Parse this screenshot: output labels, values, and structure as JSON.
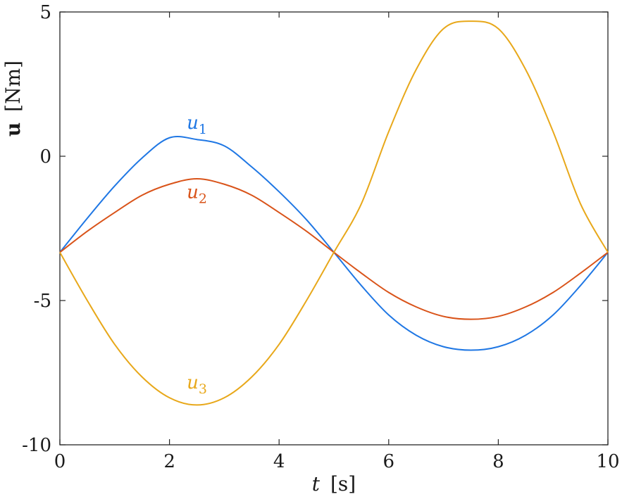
{
  "chart_data": {
    "type": "line",
    "xlabel": {
      "var": "t",
      "unit": "[s]"
    },
    "ylabel": {
      "var": "u",
      "unit": "[Nm]"
    },
    "xlim": [
      0,
      10
    ],
    "ylim": [
      -10,
      5
    ],
    "xticks": [
      0,
      2,
      4,
      6,
      8,
      10
    ],
    "yticks": [
      -10,
      -5,
      0,
      5
    ],
    "xtick_labels": [
      "0",
      "2",
      "4",
      "6",
      "8",
      "10"
    ],
    "ytick_labels": [
      "-10",
      "-5",
      "0",
      "5"
    ],
    "grid": false,
    "series": [
      {
        "name": "u",
        "sub": "1",
        "color": "#1f77e4",
        "x": [
          0,
          0.5,
          1,
          1.5,
          2,
          2.5,
          3,
          3.5,
          4,
          4.5,
          5,
          5.5,
          6,
          6.5,
          7,
          7.5,
          8,
          8.5,
          9,
          9.5,
          10
        ],
        "y": [
          -3.33,
          -2.15,
          -1.03,
          -0.06,
          0.64,
          0.58,
          0.36,
          -0.37,
          -1.23,
          -2.2,
          -3.33,
          -4.48,
          -5.5,
          -6.2,
          -6.6,
          -6.72,
          -6.6,
          -6.2,
          -5.5,
          -4.48,
          -3.33
        ]
      },
      {
        "name": "u",
        "sub": "2",
        "color": "#d95319",
        "x": [
          0,
          0.5,
          1,
          1.5,
          2,
          2.5,
          3,
          3.5,
          4,
          4.5,
          5,
          5.5,
          6,
          6.5,
          7,
          7.5,
          8,
          8.5,
          9,
          9.5,
          10
        ],
        "y": [
          -3.33,
          -2.6,
          -1.95,
          -1.35,
          -0.97,
          -0.78,
          -0.97,
          -1.35,
          -1.95,
          -2.6,
          -3.33,
          -4.05,
          -4.72,
          -5.22,
          -5.55,
          -5.65,
          -5.55,
          -5.22,
          -4.72,
          -4.05,
          -3.33
        ]
      },
      {
        "name": "u",
        "sub": "3",
        "color": "#e8a81a",
        "x": [
          0,
          0.5,
          1,
          1.5,
          2,
          2.5,
          3,
          3.5,
          4,
          4.5,
          5,
          5.5,
          6,
          6.5,
          7,
          7.5,
          8,
          8.5,
          9,
          9.5,
          10
        ],
        "y": [
          -3.33,
          -5.0,
          -6.52,
          -7.65,
          -8.37,
          -8.62,
          -8.37,
          -7.65,
          -6.52,
          -5.0,
          -3.33,
          -1.65,
          0.85,
          3.0,
          4.42,
          4.68,
          4.42,
          3.0,
          0.85,
          -1.65,
          -3.33
        ]
      }
    ],
    "annotations": [
      {
        "series": 0,
        "x": 2.5,
        "y": 0.95
      },
      {
        "series": 1,
        "x": 2.5,
        "y": -1.45
      },
      {
        "series": 2,
        "x": 2.5,
        "y": -8.05
      }
    ]
  }
}
